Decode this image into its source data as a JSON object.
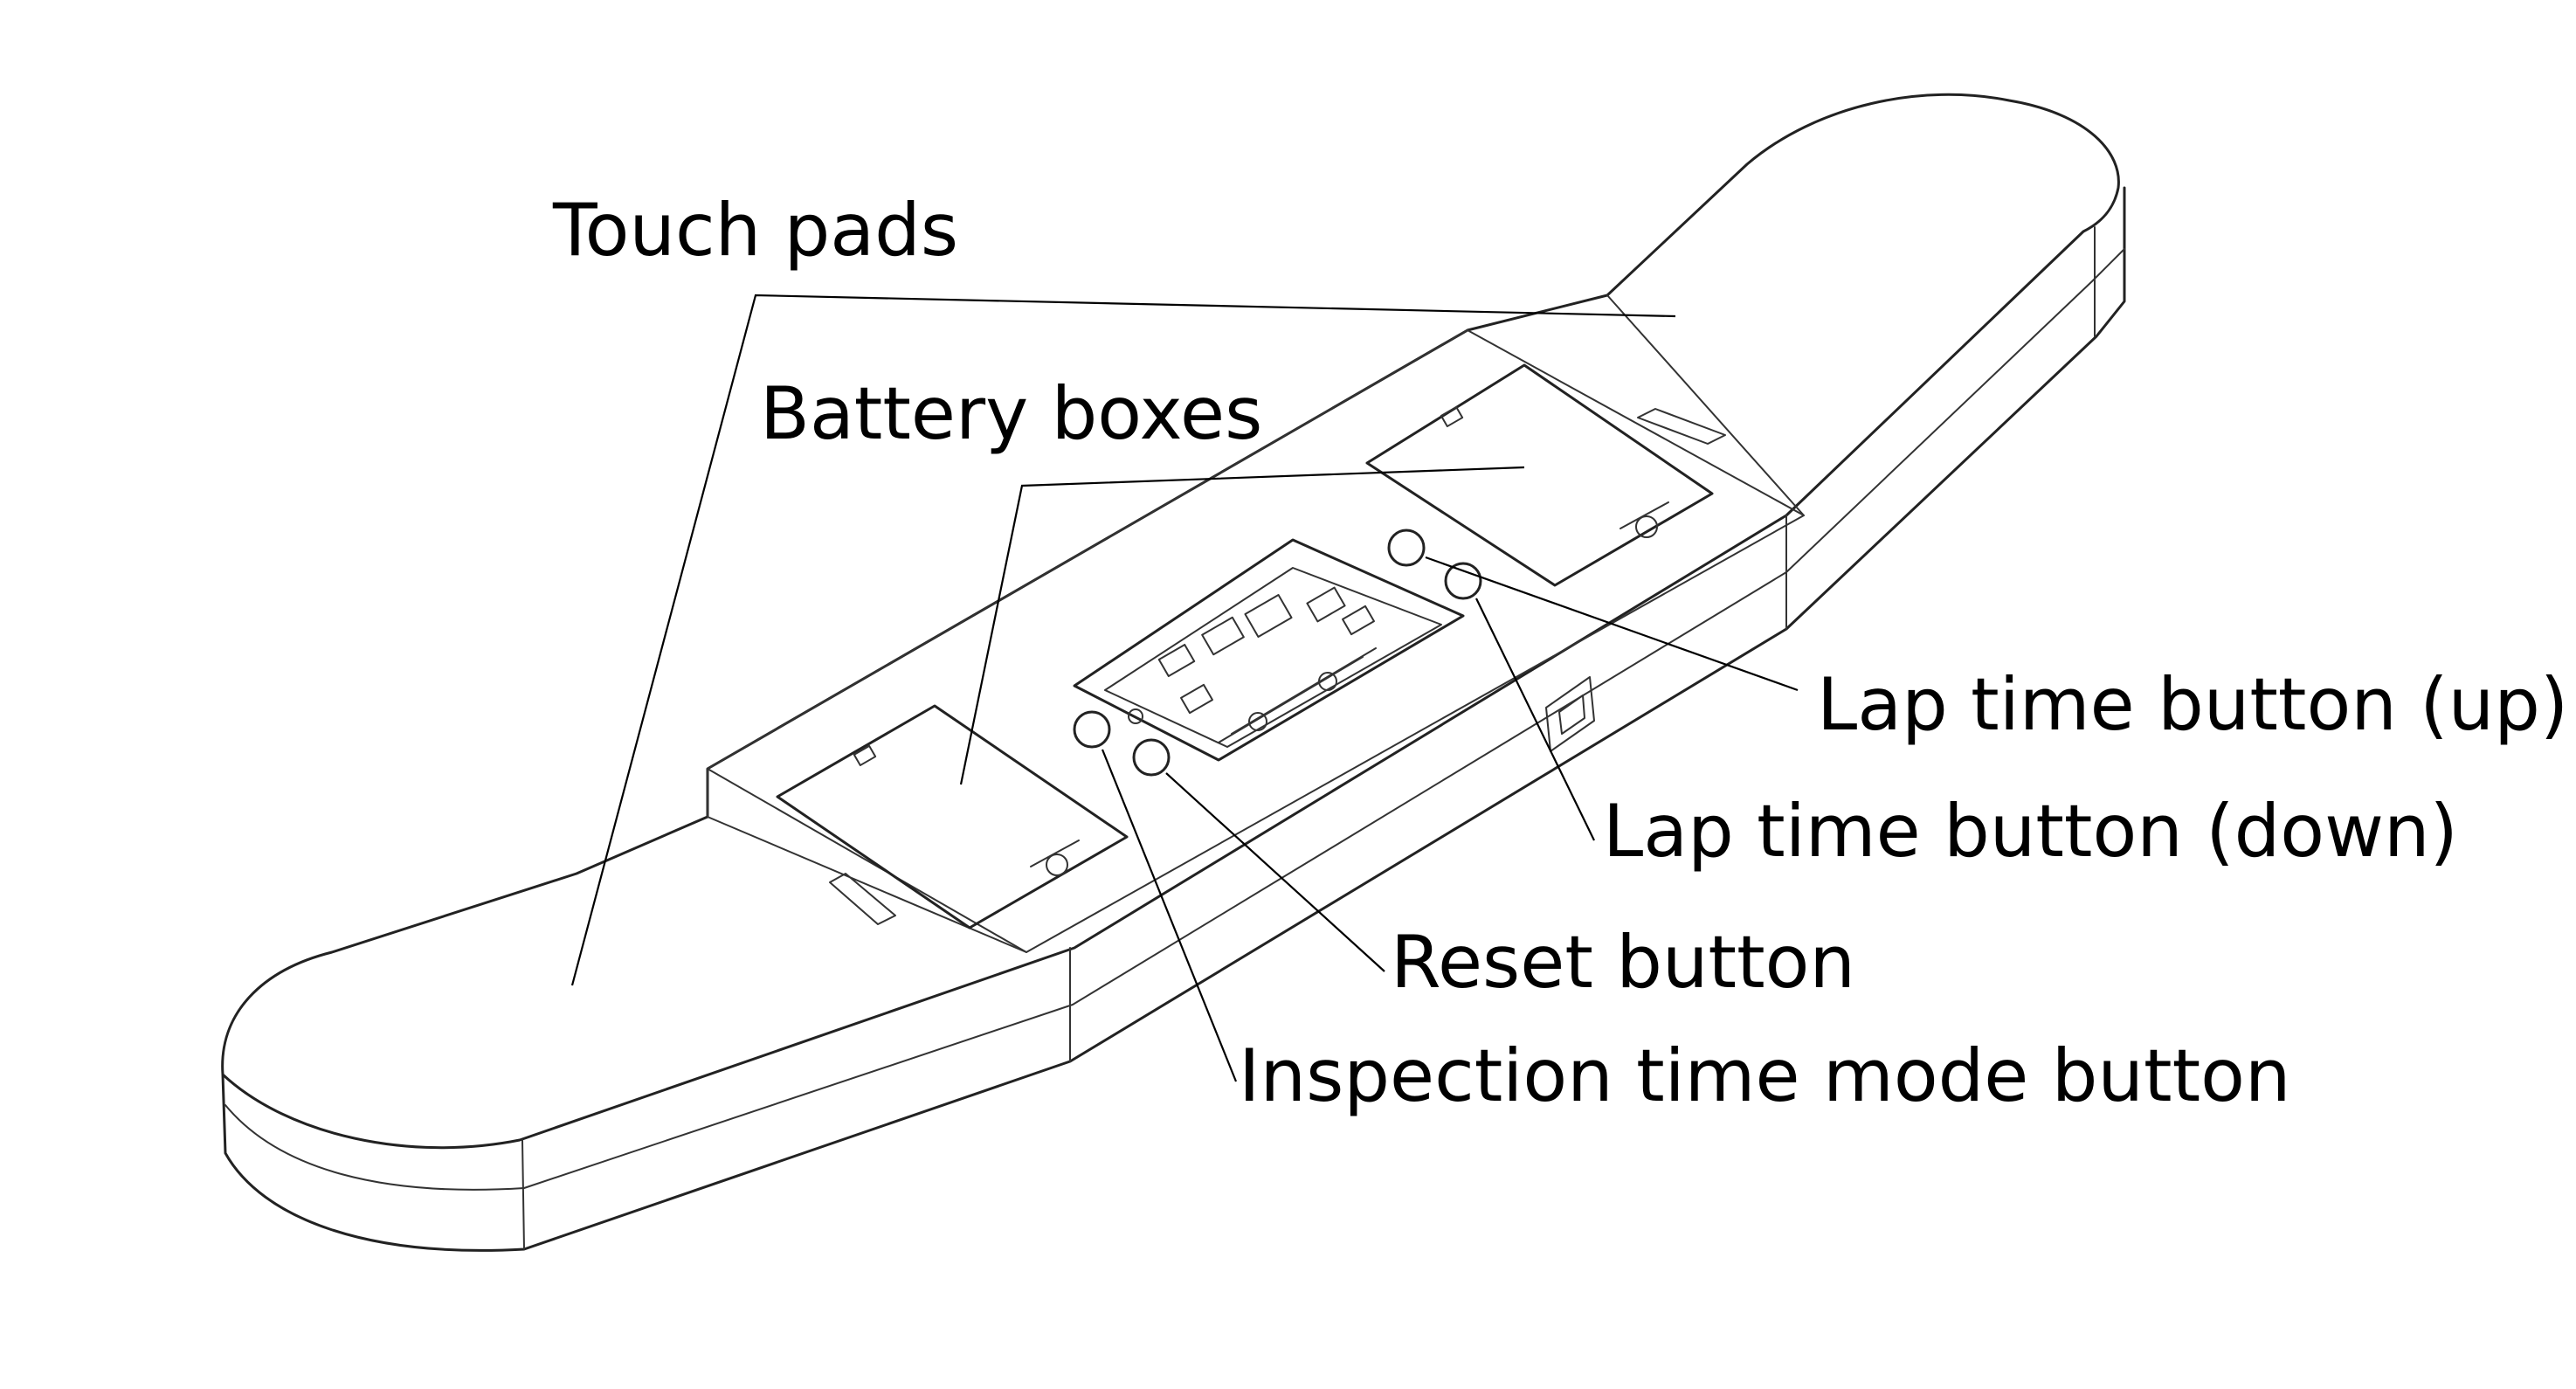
{
  "labels": {
    "touch_pads": "Touch pads",
    "battery_boxes": "Battery boxes",
    "lap_time_up": "Lap time button (up)",
    "lap_time_down": "Lap time button (down)",
    "reset_button": "Reset button",
    "inspection_button": "Inspection time mode button"
  }
}
